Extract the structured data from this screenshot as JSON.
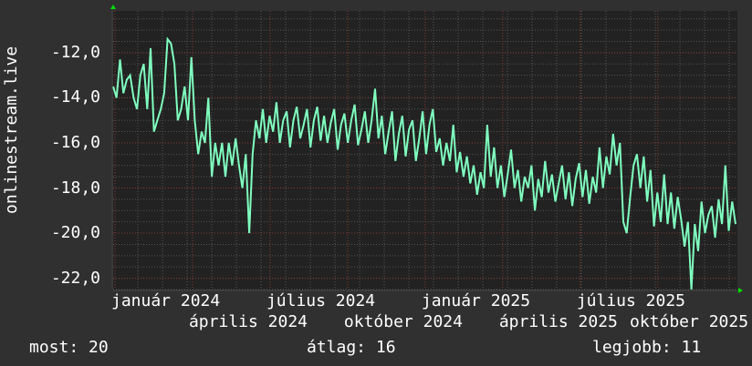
{
  "chart_data": {
    "type": "line",
    "ylabel": "onlinestream.live",
    "ylim": [
      -22.5,
      -10.15
    ],
    "yticks": [
      "-12,0",
      "-14,0",
      "-16,0",
      "-18,0",
      "-20,0",
      "-22,0"
    ],
    "ytick_values": [
      -12,
      -14,
      -16,
      -18,
      -20,
      -22
    ],
    "xticks": [
      "január 2024",
      "április 2024",
      "július 2024",
      "október 2024",
      "január 2025",
      "április 2025",
      "július 2025",
      "október 2025"
    ],
    "grid": true,
    "colors": {
      "line": "#7fffbf",
      "plot_bg": "#222222",
      "bg": "#303030",
      "major_grid": "#8a3a3a",
      "minor_grid": "#555555",
      "arrow": "#00dd00"
    },
    "series": [
      {
        "values": [
          -13.5,
          -14,
          -12.3,
          -13.8,
          -13.2,
          -13,
          -14,
          -14.5,
          -13,
          -12.5,
          -14.5,
          -11.8,
          -15.5,
          -15,
          -14.5,
          -13.8,
          -11.4,
          -11.6,
          -12.5,
          -15,
          -14.5,
          -13.5,
          -15,
          -12.2,
          -15,
          -16.5,
          -15.5,
          -16,
          -14,
          -17.5,
          -16,
          -17,
          -16,
          -17.5,
          -16,
          -17,
          -15.8,
          -17,
          -18,
          -16.5,
          -20,
          -16.5,
          -15,
          -15.8,
          -14.5,
          -16,
          -14.8,
          -15.5,
          -14.2,
          -16,
          -15,
          -14.6,
          -16.2,
          -15,
          -14.4,
          -15.8,
          -15.2,
          -14.5,
          -16.2,
          -15,
          -14.4,
          -15.9,
          -14.8,
          -16,
          -15.1,
          -14.5,
          -16.3,
          -15.2,
          -14.7,
          -16,
          -15,
          -14.3,
          -16.1,
          -15.4,
          -14.6,
          -16,
          -15,
          -13.6,
          -15.8,
          -14.8,
          -16.5,
          -15.5,
          -14.6,
          -16.8,
          -15.6,
          -14.8,
          -16.6,
          -15.4,
          -15,
          -16.8,
          -15.8,
          -14.6,
          -16.5,
          -15.2,
          -14.5,
          -16.4,
          -15.8,
          -17,
          -16,
          -16.8,
          -15.2,
          -17.3,
          -16.4,
          -17.5,
          -16.6,
          -17.8,
          -17,
          -18.3,
          -17.3,
          -18,
          -15.2,
          -17.5,
          -16.2,
          -18,
          -17,
          -18.4,
          -17.4,
          -16.3,
          -18,
          -17.2,
          -18.6,
          -17.5,
          -18,
          -17,
          -19,
          -17.6,
          -18.4,
          -16.8,
          -18.2,
          -17.4,
          -18.6,
          -17.8,
          -17,
          -18.5,
          -17.3,
          -18.8,
          -17.6,
          -16.9,
          -18.4,
          -17.2,
          -18.7,
          -17.5,
          -18.2,
          -16.2,
          -18,
          -16.6,
          -17.4,
          -15.6,
          -17,
          -16,
          -19.5,
          -20,
          -18.4,
          -17,
          -16.5,
          -18,
          -16.6,
          -18.6,
          -17.2,
          -19.7,
          -18.2,
          -19.5,
          -17.4,
          -19.6,
          -18.2,
          -19.8,
          -18.4,
          -19.4,
          -20.6,
          -19.5,
          -22.5,
          -19.6,
          -20.8,
          -18.6,
          -20,
          -19.2,
          -18.8,
          -20.2,
          -18.5,
          -19.6,
          -17,
          -19.9,
          -18.6,
          -19.6
        ]
      }
    ]
  },
  "legend": {
    "now": "most: 20",
    "avg": "átlag: 16",
    "best": "legjobb: 11"
  }
}
